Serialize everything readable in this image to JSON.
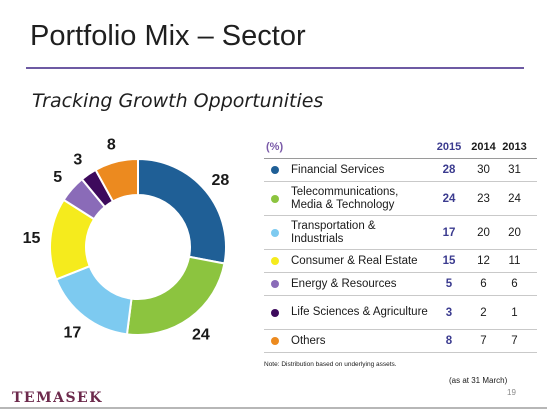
{
  "slide": {
    "title": "Portfolio Mix – Sector",
    "subtitle": "Tracking Growth Opportunities",
    "logo_text": "TEMASEK",
    "note": "Note: Distribution based on underlying assets.",
    "as_at": "(as at 31 March)",
    "page_number": "19",
    "accent_color": "#6d5aa3"
  },
  "table": {
    "unit_label": "(%)",
    "years": [
      "2015",
      "2014",
      "2013"
    ],
    "rows": [
      {
        "label": "Financial Services",
        "color": "#1f5f96",
        "values": [
          "28",
          "30",
          "31"
        ]
      },
      {
        "label": "Telecommunications, Media & Technology",
        "color": "#8cc43f",
        "values": [
          "24",
          "23",
          "24"
        ]
      },
      {
        "label": "Transportation & Industrials",
        "color": "#7dcaf0",
        "values": [
          "17",
          "20",
          "20"
        ]
      },
      {
        "label": "Consumer & Real Estate",
        "color": "#f5eb1d",
        "values": [
          "15",
          "12",
          "11"
        ]
      },
      {
        "label": "Energy & Resources",
        "color": "#8a6bb8",
        "values": [
          "5",
          "6",
          "6"
        ]
      },
      {
        "label": "Life Sciences & Agriculture",
        "color": "#3d0a5c",
        "values": [
          "3",
          "2",
          "1"
        ]
      },
      {
        "label": "Others",
        "color": "#ec8a1f",
        "values": [
          "8",
          "7",
          "7"
        ]
      }
    ]
  },
  "chart_data": {
    "type": "pie",
    "donut": true,
    "categories": [
      "Financial Services",
      "Telecommunications, Media & Technology",
      "Transportation & Industrials",
      "Consumer & Real Estate",
      "Energy & Resources",
      "Life Sciences & Agriculture",
      "Others"
    ],
    "values": [
      28,
      24,
      17,
      15,
      5,
      3,
      8
    ],
    "colors": [
      "#1f5f96",
      "#8cc43f",
      "#7dcaf0",
      "#f5eb1d",
      "#8a6bb8",
      "#3d0a5c",
      "#ec8a1f"
    ]
  }
}
